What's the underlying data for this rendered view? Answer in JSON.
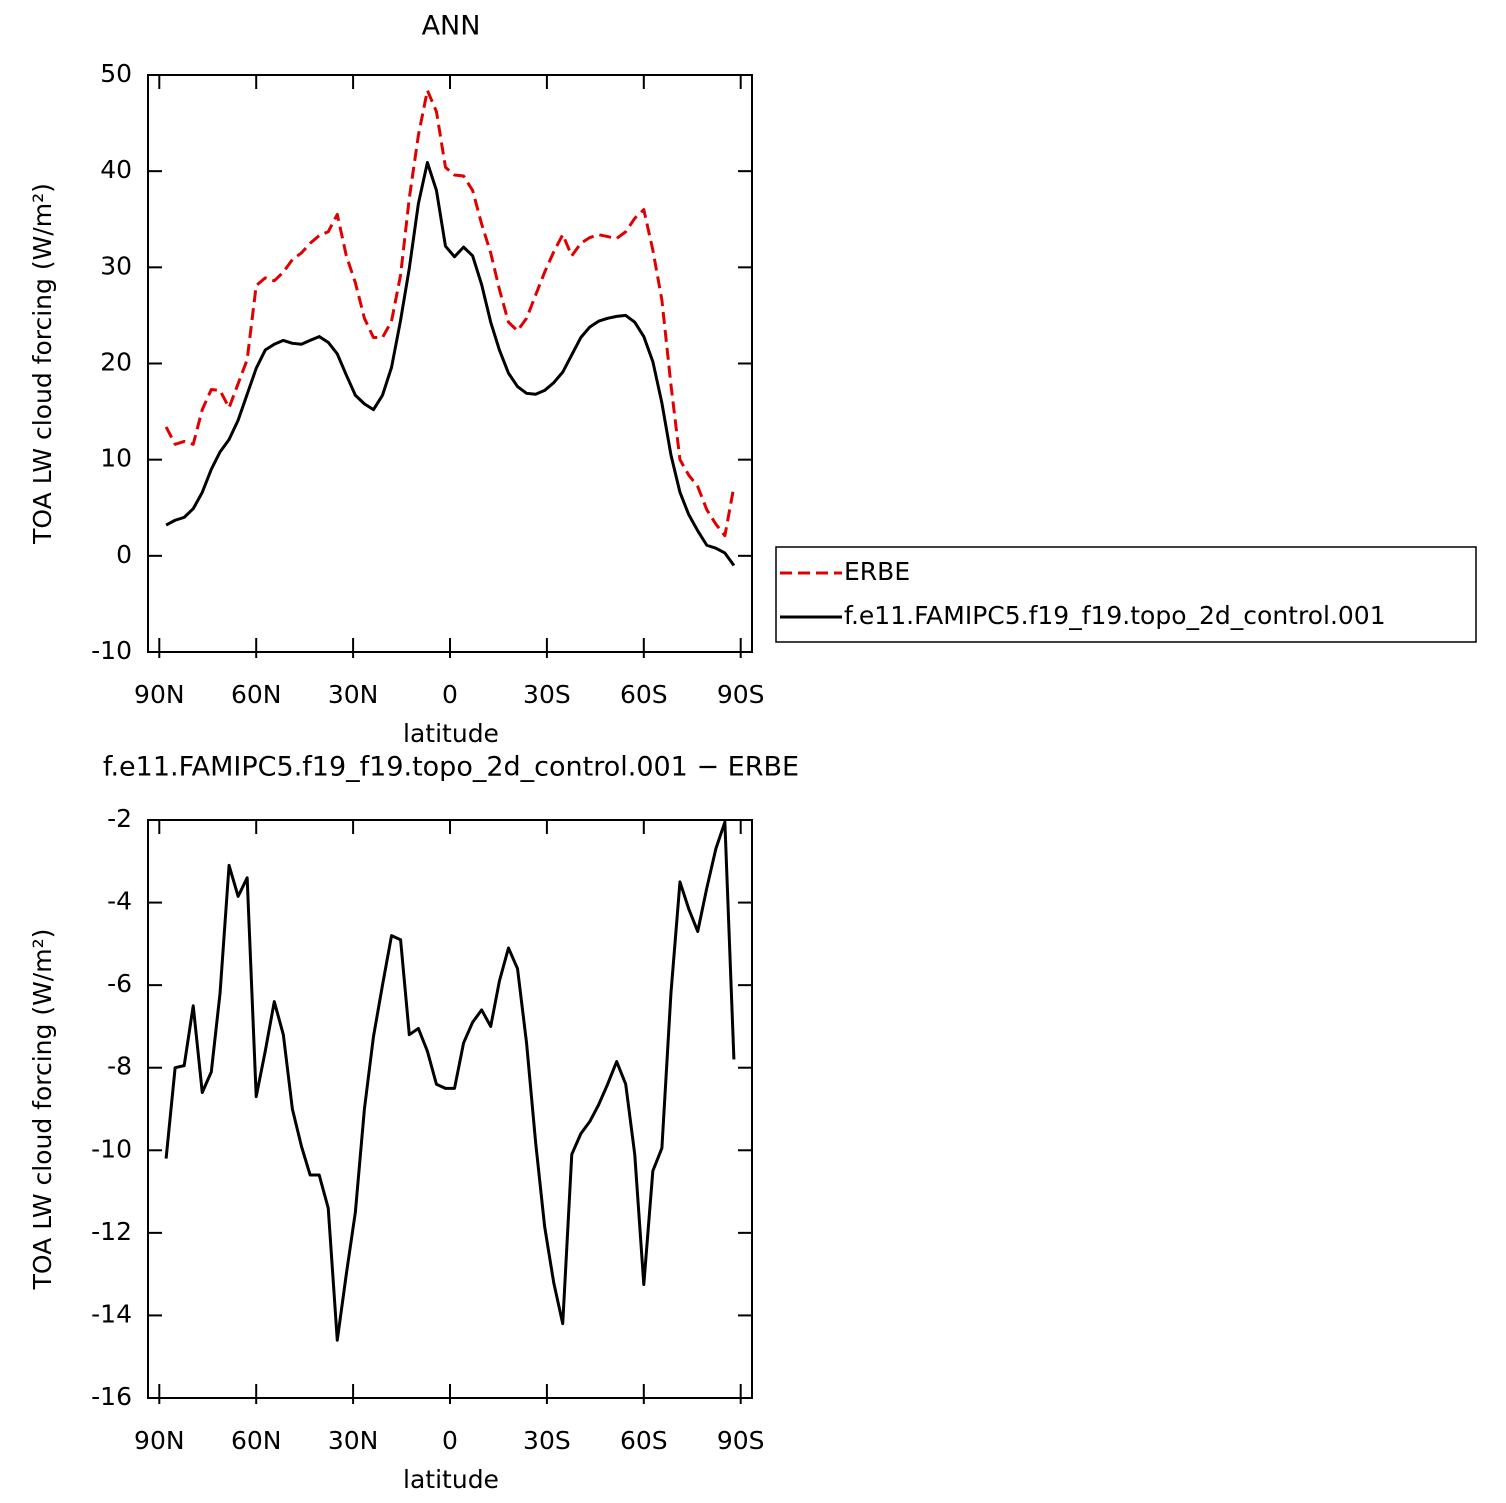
{
  "chart_data": [
    {
      "type": "line",
      "title": "ANN",
      "xlabel": "latitude",
      "ylabel": "TOA LW cloud forcing (W/m²)",
      "x": [
        87.9,
        85.1,
        82.3,
        79.5,
        76.7,
        73.9,
        71.2,
        68.4,
        65.6,
        62.8,
        60.0,
        57.2,
        54.4,
        51.6,
        48.8,
        46.0,
        43.3,
        40.5,
        37.7,
        34.9,
        32.1,
        29.3,
        26.5,
        23.7,
        20.9,
        18.1,
        15.3,
        12.6,
        9.8,
        7.0,
        4.2,
        1.4,
        -1.4,
        -4.2,
        -7.0,
        -9.8,
        -12.6,
        -15.3,
        -18.1,
        -20.9,
        -23.7,
        -26.5,
        -29.3,
        -32.1,
        -34.9,
        -37.7,
        -40.5,
        -43.3,
        -46.0,
        -48.8,
        -51.6,
        -54.4,
        -57.2,
        -60.0,
        -62.8,
        -65.6,
        -68.4,
        -71.2,
        -73.9,
        -76.7,
        -79.5,
        -82.3,
        -85.1,
        -87.9
      ],
      "series": [
        {
          "name": "ERBE",
          "color": "#e00000",
          "line_style": "dashed",
          "values": [
            13.4,
            11.6,
            11.9,
            11.6,
            15.2,
            17.3,
            17.2,
            15.4,
            17.9,
            20.4,
            28.1,
            28.9,
            28.6,
            29.5,
            30.8,
            31.5,
            32.5,
            33.3,
            33.7,
            35.5,
            31.2,
            28.4,
            24.7,
            22.7,
            22.7,
            24.4,
            29.2,
            37.2,
            43.7,
            48.4,
            46.2,
            40.4,
            39.6,
            39.5,
            38.0,
            34.5,
            31.5,
            27.7,
            24.3,
            23.4,
            24.7,
            27.1,
            29.5,
            31.6,
            33.4,
            31.2,
            32.5,
            33.1,
            33.4,
            33.2,
            33.0,
            33.7,
            35.1,
            36.0,
            31.8,
            26.6,
            17.8,
            10.0,
            8.4,
            7.2,
            4.8,
            3.3,
            2.1,
            7.2
          ]
        },
        {
          "name": "f.e11.FAMIPC5.f19_f19.topo_2d_control.001",
          "color": "#000000",
          "line_style": "solid",
          "values": [
            3.2,
            3.7,
            4.0,
            4.9,
            6.6,
            9.0,
            10.8,
            12.1,
            14.1,
            16.8,
            19.5,
            21.4,
            22.0,
            22.4,
            22.1,
            22.0,
            22.4,
            22.8,
            22.2,
            21.0,
            18.8,
            16.7,
            15.8,
            15.2,
            16.7,
            19.6,
            24.5,
            29.9,
            36.6,
            40.9,
            38.0,
            32.2,
            31.1,
            32.1,
            31.2,
            28.2,
            24.3,
            21.4,
            19.0,
            17.6,
            16.9,
            16.8,
            17.2,
            18.0,
            19.1,
            20.9,
            22.7,
            23.8,
            24.4,
            24.7,
            24.9,
            25.0,
            24.3,
            22.8,
            20.2,
            15.9,
            10.5,
            6.6,
            4.3,
            2.6,
            1.1,
            0.8,
            0.3,
            -1.0
          ]
        }
      ],
      "xlim": [
        93.5,
        -93.5
      ],
      "xticks": [
        {
          "value": 90,
          "label": "90N"
        },
        {
          "value": 60,
          "label": "60N"
        },
        {
          "value": 30,
          "label": "30N"
        },
        0,
        {
          "value": -30,
          "label": "30S"
        },
        {
          "value": -60,
          "label": "60S"
        },
        {
          "value": -90,
          "label": "90S"
        }
      ],
      "ylim": [
        -10,
        50
      ],
      "yticks": [
        -10,
        0,
        10,
        20,
        30,
        40,
        50
      ],
      "legend": "right"
    },
    {
      "type": "line",
      "title": "f.e11.FAMIPC5.f19_f19.topo_2d_control.001 − ERBE",
      "xlabel": "latitude",
      "ylabel": "TOA LW cloud forcing (W/m²)",
      "x": [
        87.9,
        85.1,
        82.3,
        79.5,
        76.7,
        73.9,
        71.2,
        68.4,
        65.6,
        62.8,
        60.0,
        57.2,
        54.4,
        51.6,
        48.8,
        46.0,
        43.3,
        40.5,
        37.7,
        34.9,
        32.1,
        29.3,
        26.5,
        23.7,
        20.9,
        18.1,
        15.3,
        12.6,
        9.8,
        7.0,
        4.2,
        1.4,
        -1.4,
        -4.2,
        -7.0,
        -9.8,
        -12.6,
        -15.3,
        -18.1,
        -20.9,
        -23.7,
        -26.5,
        -29.3,
        -32.1,
        -34.9,
        -37.7,
        -40.5,
        -43.3,
        -46.0,
        -48.8,
        -51.6,
        -54.4,
        -57.2,
        -60.0,
        -62.8,
        -65.6,
        -68.4,
        -71.2,
        -73.9,
        -76.7,
        -79.5,
        -82.3,
        -85.1,
        -87.9
      ],
      "values": [
        -10.2,
        -8.0,
        -7.95,
        -6.5,
        -8.6,
        -8.1,
        -6.2,
        -3.1,
        -3.85,
        -3.4,
        -8.7,
        -7.6,
        -6.4,
        -7.2,
        -9.0,
        -9.9,
        -10.6,
        -10.6,
        -11.4,
        -14.6,
        -13.0,
        -11.5,
        -9.0,
        -7.25,
        -6.0,
        -4.8,
        -4.9,
        -7.2,
        -7.05,
        -7.6,
        -8.4,
        -8.5,
        -8.5,
        -7.4,
        -6.9,
        -6.6,
        -7.0,
        -5.9,
        -5.1,
        -5.6,
        -7.4,
        -9.8,
        -11.85,
        -13.2,
        -14.2,
        -10.1,
        -9.6,
        -9.3,
        -8.9,
        -8.4,
        -7.85,
        -8.4,
        -10.1,
        -13.25,
        -10.5,
        -9.95,
        -6.2,
        -3.5,
        -4.15,
        -4.7,
        -3.65,
        -2.7,
        -2.05,
        -7.8
      ],
      "color": "#000000",
      "xlim": [
        93.5,
        -93.5
      ],
      "xticks": [
        {
          "value": 90,
          "label": "90N"
        },
        {
          "value": 60,
          "label": "60N"
        },
        {
          "value": 30,
          "label": "30N"
        },
        0,
        {
          "value": -30,
          "label": "30S"
        },
        {
          "value": -60,
          "label": "60S"
        },
        {
          "value": -90,
          "label": "90S"
        }
      ],
      "ylim": [
        -16,
        -2
      ],
      "yticks": [
        -16,
        -14,
        -12,
        -10,
        -8,
        -6,
        -4,
        -2
      ]
    }
  ]
}
